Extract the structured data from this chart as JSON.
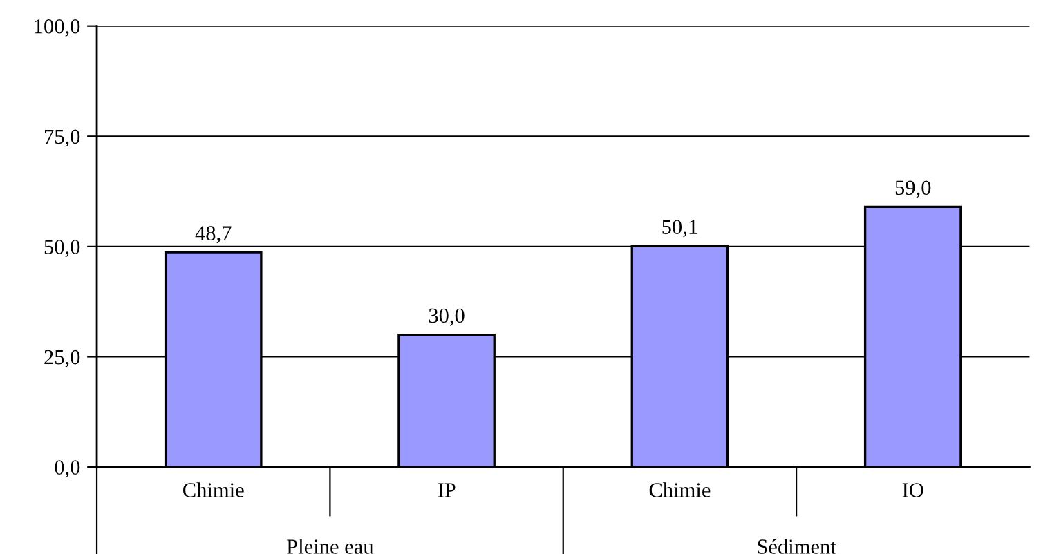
{
  "chart_data": {
    "type": "bar",
    "categories": [
      "Chimie",
      "IP",
      "Chimie",
      "IO"
    ],
    "values": [
      48.7,
      30.0,
      50.1,
      59.0
    ],
    "value_labels": [
      "48,7",
      "30,0",
      "50,1",
      "59,0"
    ],
    "color": "#9999ff",
    "ylim": [
      0,
      100
    ],
    "yticks": [
      {
        "value": 0,
        "label": "0,0"
      },
      {
        "value": 25,
        "label": "25,0"
      },
      {
        "value": 50,
        "label": "50,0"
      },
      {
        "value": 75,
        "label": "75,0"
      },
      {
        "value": 100,
        "label": "100,0"
      }
    ],
    "grid": "y",
    "annotations": [
      "Pleine eau",
      "Sédiment"
    ]
  }
}
